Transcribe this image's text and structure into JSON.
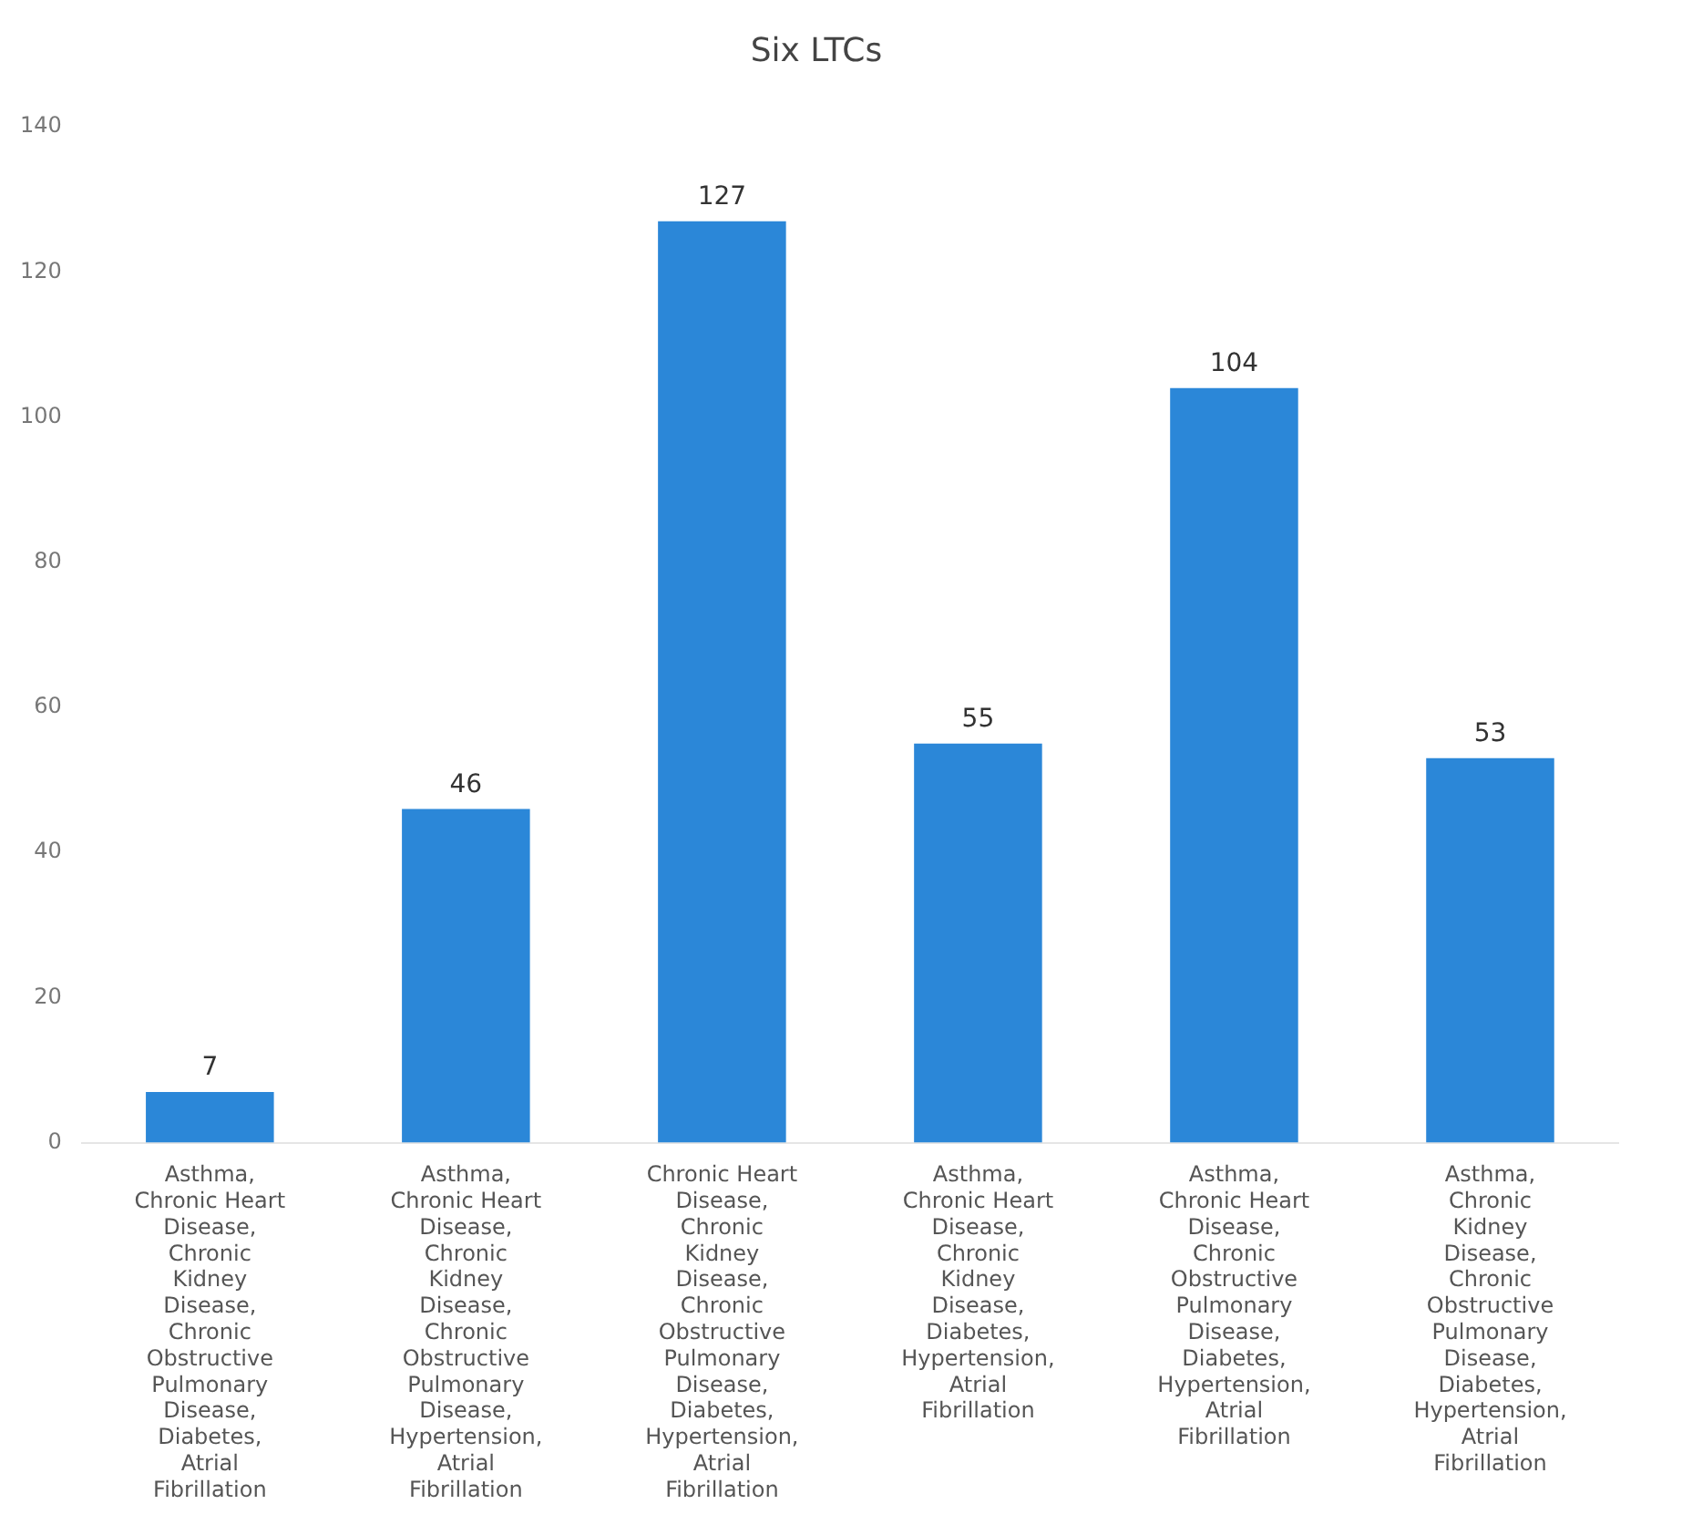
{
  "chart_data": {
    "type": "bar",
    "title": "Six LTCs",
    "categories": [
      "Asthma, Chronic Heart Disease, Chronic Kidney Disease, Chronic Obstructive Pulmonary Disease, Diabetes, Atrial Fibrillation",
      "Asthma, Chronic Heart Disease, Chronic Kidney Disease, Chronic Obstructive Pulmonary Disease, Hypertension, Atrial Fibrillation",
      "Chronic Heart Disease, Chronic Kidney Disease, Chronic Obstructive Pulmonary Disease, Diabetes, Hypertension, Atrial Fibrillation",
      "Asthma, Chronic Heart Disease, Chronic Kidney Disease, Diabetes, Hypertension, Atrial Fibrillation",
      "Asthma, Chronic Heart Disease, Chronic Obstructive Pulmonary Disease, Diabetes, Hypertension, Atrial Fibrillation",
      "Asthma, Chronic Kidney Disease, Chronic Obstructive Pulmonary Disease, Diabetes, Hypertension, Atrial Fibrillation"
    ],
    "values": [
      7,
      46,
      127,
      55,
      104,
      53
    ],
    "color": "#2b87d8",
    "ylim": [
      0,
      140
    ],
    "yticks": [
      0,
      20,
      40,
      60,
      80,
      100,
      120,
      140
    ],
    "grid": false,
    "data_labels": true
  }
}
